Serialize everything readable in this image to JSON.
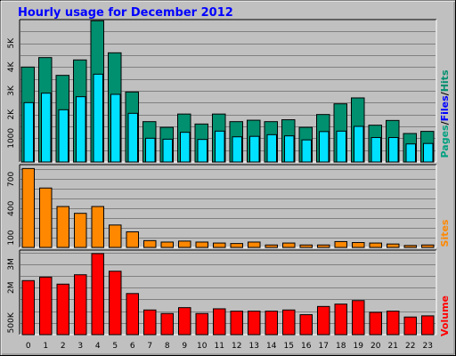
{
  "title": "Hourly usage for December 2012",
  "colors": {
    "background": "#c0c0c0",
    "plot_bg": "#c0c0c0",
    "pages": "#008f6f",
    "files": "#00e0ff",
    "hits": "#00e0ff",
    "sites": "#ff8800",
    "volume": "#ff0000",
    "title": "#0000ff",
    "label_pages": "#00a080",
    "label_files": "#0000ff",
    "label_hits": "#008f6f"
  },
  "right_labels": {
    "top": [
      "Pages",
      "/",
      "Files",
      "/",
      "Hits"
    ],
    "middle": "Sites",
    "bottom": "Volume"
  },
  "chart_data": [
    {
      "type": "bar",
      "panel": "top",
      "categories": [
        "0",
        "1",
        "2",
        "3",
        "4",
        "5",
        "6",
        "7",
        "8",
        "9",
        "10",
        "11",
        "12",
        "13",
        "14",
        "15",
        "16",
        "17",
        "18",
        "19",
        "20",
        "21",
        "22",
        "23"
      ],
      "ylim": [
        0,
        6000
      ],
      "yticks": [
        1000,
        2000,
        3000,
        4000,
        5000
      ],
      "ytick_labels": [
        "1000",
        "2K",
        "3K",
        "4K",
        "5K"
      ],
      "series": [
        {
          "name": "Pages",
          "values": [
            4000,
            4400,
            3650,
            4300,
            5950,
            4600,
            2950,
            1700,
            1460,
            2020,
            1600,
            2020,
            1700,
            1760,
            1700,
            1780,
            1460,
            2000,
            2450,
            2700,
            1550,
            1750,
            1200,
            1290
          ]
        },
        {
          "name": "Files",
          "values": [
            2500,
            2900,
            2200,
            2750,
            3700,
            2850,
            2050,
            1000,
            960,
            1250,
            950,
            1300,
            1060,
            1080,
            1150,
            1100,
            930,
            1280,
            1300,
            1500,
            1030,
            1030,
            760,
            780
          ]
        }
      ]
    },
    {
      "type": "bar",
      "panel": "middle",
      "categories": [
        "0",
        "1",
        "2",
        "3",
        "4",
        "5",
        "6",
        "7",
        "8",
        "9",
        "10",
        "11",
        "12",
        "13",
        "14",
        "15",
        "16",
        "17",
        "18",
        "19",
        "20",
        "21",
        "22",
        "23"
      ],
      "ylim": [
        0,
        850
      ],
      "yticks": [
        100,
        400,
        700
      ],
      "ytick_labels": [
        "100",
        "400",
        "700"
      ],
      "series": [
        {
          "name": "Sites",
          "values": [
            810,
            610,
            420,
            350,
            420,
            230,
            160,
            70,
            55,
            65,
            55,
            45,
            40,
            55,
            25,
            45,
            25,
            25,
            60,
            50,
            45,
            35,
            20,
            25
          ]
        }
      ]
    },
    {
      "type": "bar",
      "panel": "bottom",
      "categories": [
        "0",
        "1",
        "2",
        "3",
        "4",
        "5",
        "6",
        "7",
        "8",
        "9",
        "10",
        "11",
        "12",
        "13",
        "14",
        "15",
        "16",
        "17",
        "18",
        "19",
        "20",
        "21",
        "22",
        "23"
      ],
      "ylim": [
        0,
        3600000
      ],
      "yticks": [
        500000,
        2000000,
        3000000
      ],
      "ytick_labels": [
        "500K",
        "2M",
        "3M"
      ],
      "series": [
        {
          "name": "Volume",
          "values": [
            2300000,
            2450000,
            2150000,
            2550000,
            3450000,
            2700000,
            1750000,
            1050000,
            900000,
            1150000,
            900000,
            1100000,
            1000000,
            1000000,
            1000000,
            1050000,
            850000,
            1200000,
            1300000,
            1450000,
            950000,
            1000000,
            750000,
            800000
          ]
        }
      ]
    }
  ]
}
